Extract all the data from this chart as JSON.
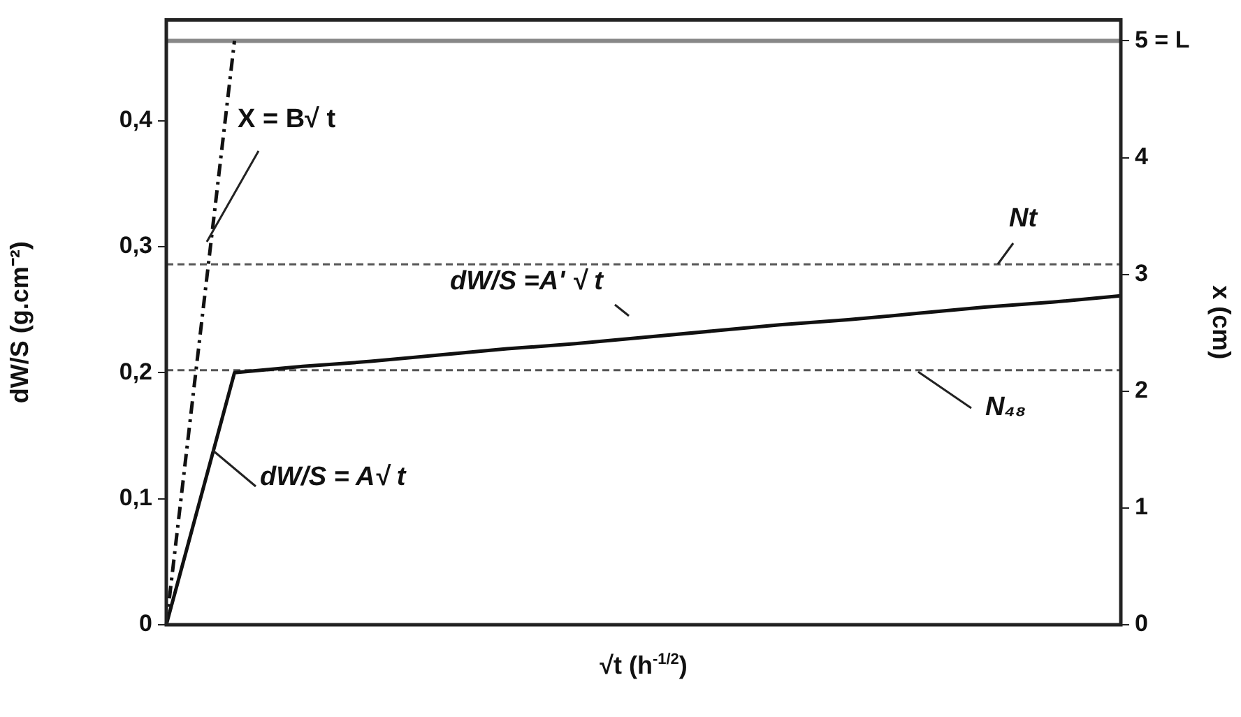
{
  "chart_data": {
    "type": "line",
    "xlabel": "√t (h$^{-1/2}$)",
    "ylabel": "dW/S (g.cm⁻²)",
    "y2label": "x (cm)",
    "categories": [
      null,
      null,
      null,
      null,
      null,
      null,
      null,
      null,
      null,
      null,
      null,
      null,
      null,
      null,
      null
    ],
    "series": [
      {
        "color": "#111111",
        "line_style": "solid",
        "values": [
          0,
          0.2,
          0.205,
          0.209,
          0.214,
          0.219,
          0.223,
          0.228,
          0.233,
          0.238,
          0.242,
          0.247,
          0.252,
          0.256,
          0.261
        ]
      },
      {
        "color": "#111111",
        "line_style": "dashed",
        "axis": "y2",
        "values": [
          0,
          5,
          null,
          null,
          null,
          null,
          null,
          null,
          null,
          null,
          null,
          null,
          null,
          null,
          null
        ]
      }
    ],
    "ylim": [
      0,
      0.48
    ],
    "yticks": [
      0,
      {
        "value": 0.1,
        "label": "0,1"
      },
      {
        "value": 0.2,
        "label": "0,2"
      },
      {
        "value": 0.3,
        "label": "0,3"
      },
      {
        "value": 0.4,
        "label": "0,4"
      }
    ],
    "y2lim": [
      0,
      5.18
    ],
    "y2ticks": [
      0,
      1,
      2,
      3,
      4,
      {
        "value": 5,
        "label": "5 = L"
      }
    ],
    "ref_lines": [
      {
        "axis": "y",
        "value": 0.286,
        "label": "Nt",
        "color": "#555555",
        "line_style": "dashed"
      },
      {
        "axis": "y",
        "value": 0.202,
        "label": "N₄₈",
        "color": "#555555",
        "line_style": "dashed"
      },
      {
        "axis": "y2",
        "value": 5,
        "color": "#888888",
        "line_style": "solid"
      }
    ],
    "annotations": [
      "X = B√ t",
      "dW/S =A' √ t",
      "dW/S = A√ t"
    ],
    "grid": false,
    "legend": false,
    "marker": "none"
  }
}
